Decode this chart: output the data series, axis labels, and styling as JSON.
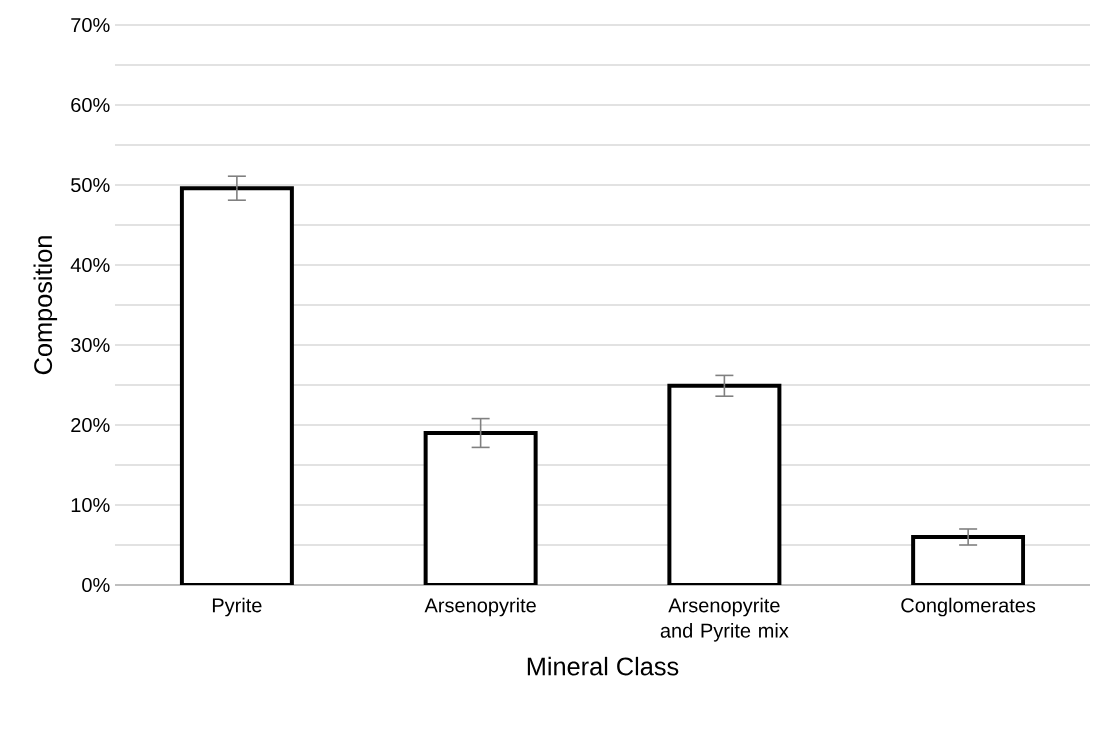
{
  "chart_data": {
    "type": "bar",
    "xlabel": "Mineral Class",
    "ylabel": "Composition",
    "categories": [
      "Pyrite",
      "Arsenopyrite",
      "Arsenopyrite and Pyrite mix",
      "Conglomerates"
    ],
    "values": [
      49.6,
      19.0,
      24.9,
      6.0
    ],
    "errors": [
      1.5,
      1.8,
      1.3,
      1.0
    ],
    "color": "#ffffff",
    "ylim": [
      0,
      70
    ],
    "yticks": [
      {
        "value": 0,
        "label": "0%"
      },
      {
        "value": 5,
        "label": null
      },
      {
        "value": 10,
        "label": "10%"
      },
      {
        "value": 15,
        "label": null
      },
      {
        "value": 20,
        "label": "20%"
      },
      {
        "value": 25,
        "label": null
      },
      {
        "value": 30,
        "label": "30%"
      },
      {
        "value": 35,
        "label": null
      },
      {
        "value": 40,
        "label": "40%"
      },
      {
        "value": 45,
        "label": null
      },
      {
        "value": 50,
        "label": "50%"
      },
      {
        "value": 55,
        "label": null
      },
      {
        "value": 60,
        "label": "60%"
      },
      {
        "value": 65,
        "label": null
      },
      {
        "value": 70,
        "label": "70%"
      }
    ],
    "grid": "y"
  }
}
